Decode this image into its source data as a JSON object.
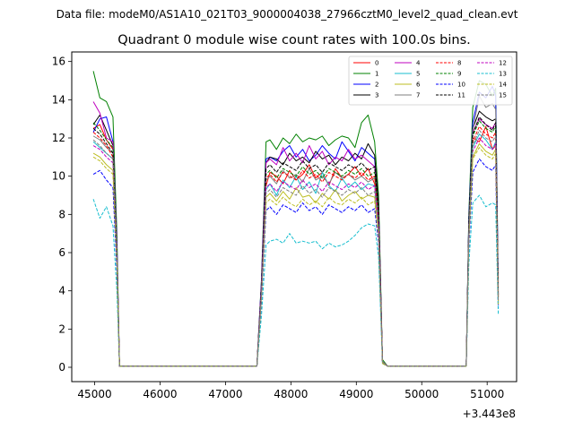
{
  "suptitle": "Data file: modeM0/AS1A10_021T03_9000004038_27966cztM0_level2_quad_clean.evt",
  "chart_data": {
    "type": "line",
    "title": "Quadrant 0 module wise count rates with 100.0s bins.",
    "xlabel": "",
    "ylabel": "",
    "x_offset_label": "+3.443e8",
    "xlim": [
      44650,
      51450
    ],
    "ylim": [
      -0.75,
      16.5
    ],
    "xticks": [
      45000,
      46000,
      47000,
      48000,
      49000,
      50000,
      51000
    ],
    "xtick_labels": [
      "45000",
      "46000",
      "47000",
      "48000",
      "49000",
      "50000",
      "51000"
    ],
    "yticks": [
      0,
      2,
      4,
      6,
      8,
      10,
      12,
      14,
      16
    ],
    "ytick_labels": [
      "0",
      "2",
      "4",
      "6",
      "8",
      "10",
      "12",
      "14",
      "16"
    ],
    "legend_position": "top-right",
    "x_segments": [
      [
        44980,
        45080,
        45180,
        45280,
        45340,
        45380,
        47480
      ],
      [
        47480,
        47550,
        47620,
        47680,
        47780,
        47880,
        47980,
        48080,
        48180,
        48280,
        48380,
        48480,
        48580,
        48680,
        48780,
        48880,
        48980,
        49080,
        49180,
        49280,
        49340,
        49400
      ],
      [
        49400,
        49480,
        49580,
        50680
      ],
      [
        50680,
        50720,
        50780,
        50880,
        50980,
        51080,
        51130,
        51170
      ]
    ],
    "series": [
      {
        "name": "0",
        "color": "#ff0000",
        "dash": "solid",
        "segments": [
          [
            12.5,
            12.7,
            11.9,
            11.4,
            6.0,
            0.05,
            0.05
          ],
          [
            0.05,
            4.0,
            9.5,
            10.2,
            10.0,
            9.6,
            10.3,
            9.8,
            10.1,
            10.6,
            9.9,
            10.2,
            9.5,
            10.4,
            9.9,
            10.1,
            10.5,
            10.0,
            10.4,
            9.6,
            7.8,
            0.3
          ],
          [
            0.3,
            0.05,
            0.05,
            0.05
          ],
          [
            0.05,
            7.5,
            12.0,
            11.8,
            12.6,
            11.4,
            11.6,
            3.8
          ]
        ]
      },
      {
        "name": "1",
        "color": "#008000",
        "dash": "solid",
        "segments": [
          [
            15.5,
            14.1,
            13.9,
            13.1,
            7.0,
            0.05,
            0.05
          ],
          [
            0.05,
            4.6,
            11.8,
            11.9,
            11.4,
            12.0,
            11.7,
            12.2,
            11.8,
            12.0,
            11.9,
            12.1,
            11.6,
            11.9,
            12.1,
            12.0,
            11.5,
            12.8,
            13.2,
            11.8,
            9.0,
            0.4
          ],
          [
            0.4,
            0.05,
            0.05,
            0.05
          ],
          [
            0.05,
            8.0,
            13.6,
            15.0,
            14.8,
            14.2,
            14.6,
            4.0
          ]
        ]
      },
      {
        "name": "2",
        "color": "#0000ff",
        "dash": "solid",
        "segments": [
          [
            12.3,
            13.0,
            13.1,
            11.8,
            6.5,
            0.05,
            0.05
          ],
          [
            0.05,
            4.5,
            10.9,
            11.0,
            10.8,
            11.3,
            11.6,
            11.0,
            11.4,
            10.8,
            11.1,
            11.6,
            11.2,
            10.9,
            11.8,
            11.3,
            10.8,
            11.5,
            11.2,
            10.9,
            8.4,
            0.3
          ],
          [
            0.3,
            0.05,
            0.05,
            0.05
          ],
          [
            0.05,
            7.8,
            12.8,
            14.4,
            14.1,
            14.7,
            14.2,
            4.2
          ]
        ]
      },
      {
        "name": "3",
        "color": "#000000",
        "dash": "solid",
        "segments": [
          [
            12.7,
            13.2,
            12.4,
            11.6,
            6.2,
            0.05,
            0.05
          ],
          [
            0.05,
            4.3,
            10.7,
            11.0,
            10.9,
            10.6,
            11.2,
            10.8,
            11.0,
            10.7,
            11.3,
            10.9,
            11.1,
            10.6,
            11.0,
            10.8,
            11.2,
            10.9,
            11.7,
            11.1,
            8.5,
            0.3
          ],
          [
            0.3,
            0.05,
            0.05,
            0.05
          ],
          [
            0.05,
            7.6,
            12.5,
            13.4,
            13.1,
            12.9,
            13.0,
            3.7
          ]
        ]
      },
      {
        "name": "4",
        "color": "#bf00bf",
        "dash": "solid",
        "segments": [
          [
            13.9,
            13.3,
            12.0,
            11.8,
            6.4,
            0.05,
            0.05
          ],
          [
            0.05,
            4.4,
            10.7,
            10.9,
            10.6,
            11.5,
            10.8,
            11.2,
            10.7,
            11.6,
            10.9,
            11.3,
            10.6,
            11.0,
            10.8,
            11.4,
            10.9,
            11.1,
            10.8,
            10.5,
            8.2,
            0.3
          ],
          [
            0.3,
            0.05,
            0.05,
            0.05
          ],
          [
            0.05,
            7.4,
            12.3,
            13.0,
            12.7,
            12.5,
            12.8,
            3.9
          ]
        ]
      },
      {
        "name": "5",
        "color": "#17becf",
        "dash": "solid",
        "segments": [
          [
            11.8,
            11.5,
            11.2,
            10.9,
            5.8,
            0.05,
            0.05
          ],
          [
            0.05,
            3.9,
            9.3,
            9.6,
            9.0,
            9.8,
            9.4,
            10.0,
            9.3,
            9.7,
            9.1,
            10.2,
            9.5,
            9.2,
            9.9,
            9.4,
            9.7,
            9.3,
            9.6,
            9.5,
            7.5,
            0.3
          ],
          [
            0.3,
            0.05,
            0.05,
            0.05
          ],
          [
            0.05,
            7.0,
            11.5,
            12.2,
            11.9,
            11.4,
            11.8,
            3.5
          ]
        ]
      },
      {
        "name": "6",
        "color": "#bcbd22",
        "dash": "solid",
        "segments": [
          [
            11.2,
            11.0,
            10.6,
            10.3,
            5.5,
            0.05,
            0.05
          ],
          [
            0.05,
            3.7,
            8.9,
            9.1,
            8.7,
            9.2,
            8.8,
            9.4,
            8.9,
            9.0,
            8.6,
            9.1,
            8.8,
            9.3,
            8.7,
            9.0,
            9.2,
            8.8,
            9.0,
            8.9,
            7.1,
            0.3
          ],
          [
            0.3,
            0.05,
            0.05,
            0.05
          ],
          [
            0.05,
            6.8,
            11.0,
            11.7,
            11.3,
            11.1,
            11.4,
            3.4
          ]
        ]
      },
      {
        "name": "7",
        "color": "#7f7f7f",
        "dash": "solid",
        "segments": [
          [
            12.1,
            11.9,
            11.5,
            11.2,
            6.0,
            0.05,
            0.05
          ],
          [
            0.05,
            4.0,
            9.8,
            10.0,
            9.6,
            10.3,
            9.9,
            10.1,
            9.7,
            10.4,
            9.8,
            10.0,
            9.6,
            10.2,
            9.9,
            10.1,
            9.8,
            10.0,
            9.7,
            9.9,
            7.7,
            0.3
          ],
          [
            0.3,
            0.05,
            0.05,
            0.05
          ],
          [
            0.05,
            7.3,
            12.4,
            14.2,
            13.6,
            13.8,
            13.5,
            3.8
          ]
        ]
      },
      {
        "name": "8",
        "color": "#ff0000",
        "dash": "dashed",
        "segments": [
          [
            12.3,
            12.0,
            11.6,
            11.0,
            5.9,
            0.05,
            0.05
          ],
          [
            0.05,
            4.1,
            9.9,
            10.1,
            9.7,
            10.2,
            10.0,
            9.8,
            10.3,
            9.9,
            10.1,
            9.7,
            10.2,
            10.0,
            9.8,
            10.1,
            9.9,
            10.2,
            9.8,
            10.0,
            7.8,
            0.3
          ],
          [
            0.3,
            0.05,
            0.05,
            0.05
          ],
          [
            0.05,
            7.2,
            11.8,
            12.6,
            12.2,
            12.0,
            12.3,
            3.6
          ]
        ]
      },
      {
        "name": "9",
        "color": "#008000",
        "dash": "dashed",
        "segments": [
          [
            12.8,
            12.4,
            11.9,
            11.5,
            6.1,
            0.05,
            0.05
          ],
          [
            0.05,
            4.2,
            10.1,
            10.3,
            9.9,
            10.4,
            10.2,
            10.0,
            10.5,
            10.1,
            10.3,
            9.9,
            10.4,
            10.2,
            10.0,
            10.3,
            10.1,
            10.4,
            10.0,
            10.2,
            8.0,
            0.3
          ],
          [
            0.3,
            0.05,
            0.05,
            0.05
          ],
          [
            0.05,
            7.4,
            12.1,
            12.9,
            12.5,
            12.3,
            12.6,
            3.7
          ]
        ]
      },
      {
        "name": "10",
        "color": "#0000ff",
        "dash": "dashed",
        "segments": [
          [
            10.1,
            10.3,
            9.8,
            9.4,
            5.0,
            0.05,
            0.05
          ],
          [
            0.05,
            3.4,
            8.2,
            8.4,
            8.0,
            8.5,
            8.3,
            8.1,
            8.6,
            8.2,
            8.4,
            8.0,
            8.5,
            8.3,
            8.1,
            8.4,
            8.2,
            8.5,
            8.1,
            8.3,
            6.5,
            0.2
          ],
          [
            0.2,
            0.05,
            0.05,
            0.05
          ],
          [
            0.05,
            6.3,
            10.2,
            10.9,
            10.5,
            10.3,
            10.6,
            3.1
          ]
        ]
      },
      {
        "name": "11",
        "color": "#000000",
        "dash": "dashed",
        "segments": [
          [
            12.5,
            12.2,
            11.7,
            11.2,
            6.0,
            0.05,
            0.05
          ],
          [
            0.05,
            4.2,
            10.4,
            10.6,
            10.2,
            10.7,
            10.5,
            10.3,
            10.8,
            10.4,
            10.6,
            10.2,
            10.7,
            10.5,
            10.3,
            10.6,
            10.4,
            10.7,
            10.3,
            10.5,
            8.2,
            0.3
          ],
          [
            0.3,
            0.05,
            0.05,
            0.05
          ],
          [
            0.05,
            7.5,
            12.2,
            13.1,
            12.7,
            12.4,
            12.8,
            3.7
          ]
        ]
      },
      {
        "name": "12",
        "color": "#bf00bf",
        "dash": "dashed",
        "segments": [
          [
            11.6,
            11.4,
            11.0,
            10.7,
            5.7,
            0.05,
            0.05
          ],
          [
            0.05,
            3.9,
            9.4,
            9.6,
            9.2,
            9.7,
            9.5,
            9.3,
            9.8,
            9.4,
            9.6,
            9.2,
            9.7,
            9.5,
            9.3,
            9.6,
            9.4,
            9.7,
            9.3,
            9.5,
            7.4,
            0.3
          ],
          [
            0.3,
            0.05,
            0.05,
            0.05
          ],
          [
            0.05,
            6.9,
            11.3,
            12.0,
            11.6,
            11.4,
            11.7,
            3.4
          ]
        ]
      },
      {
        "name": "13",
        "color": "#17becf",
        "dash": "dashed",
        "segments": [
          [
            8.8,
            7.8,
            8.4,
            7.4,
            4.0,
            0.05,
            0.05
          ],
          [
            0.05,
            2.7,
            6.4,
            6.6,
            6.7,
            6.5,
            7.0,
            6.5,
            6.6,
            6.5,
            6.6,
            6.2,
            6.5,
            6.3,
            6.4,
            6.6,
            6.9,
            7.3,
            7.5,
            7.4,
            5.8,
            0.2
          ],
          [
            0.2,
            0.05,
            0.05,
            0.05
          ],
          [
            0.05,
            5.4,
            8.6,
            9.0,
            8.4,
            8.6,
            8.5,
            2.8
          ]
        ]
      },
      {
        "name": "14",
        "color": "#bcbd22",
        "dash": "dashed",
        "segments": [
          [
            11.0,
            10.8,
            10.4,
            10.1,
            5.4,
            0.05,
            0.05
          ],
          [
            0.05,
            3.6,
            8.6,
            8.8,
            8.5,
            8.9,
            8.6,
            8.4,
            8.8,
            8.5,
            8.7,
            8.4,
            8.9,
            8.6,
            8.5,
            8.8,
            8.6,
            8.9,
            8.5,
            8.7,
            6.8,
            0.2
          ],
          [
            0.2,
            0.05,
            0.05,
            0.05
          ],
          [
            0.05,
            6.6,
            10.9,
            11.5,
            11.1,
            10.9,
            11.2,
            3.3
          ]
        ]
      },
      {
        "name": "15",
        "color": "#7f7f7f",
        "dash": "dashed",
        "segments": [
          [
            11.9,
            11.6,
            11.2,
            10.9,
            5.8,
            0.05,
            0.05
          ],
          [
            0.05,
            3.8,
            9.1,
            9.3,
            8.9,
            9.4,
            9.2,
            9.0,
            9.5,
            9.1,
            9.3,
            8.9,
            9.4,
            9.2,
            9.0,
            9.3,
            9.1,
            9.4,
            9.0,
            9.2,
            7.2,
            0.3
          ],
          [
            0.3,
            0.05,
            0.05,
            0.05
          ],
          [
            0.05,
            7.0,
            11.6,
            12.4,
            12.0,
            11.8,
            12.1,
            3.5
          ]
        ]
      }
    ]
  }
}
